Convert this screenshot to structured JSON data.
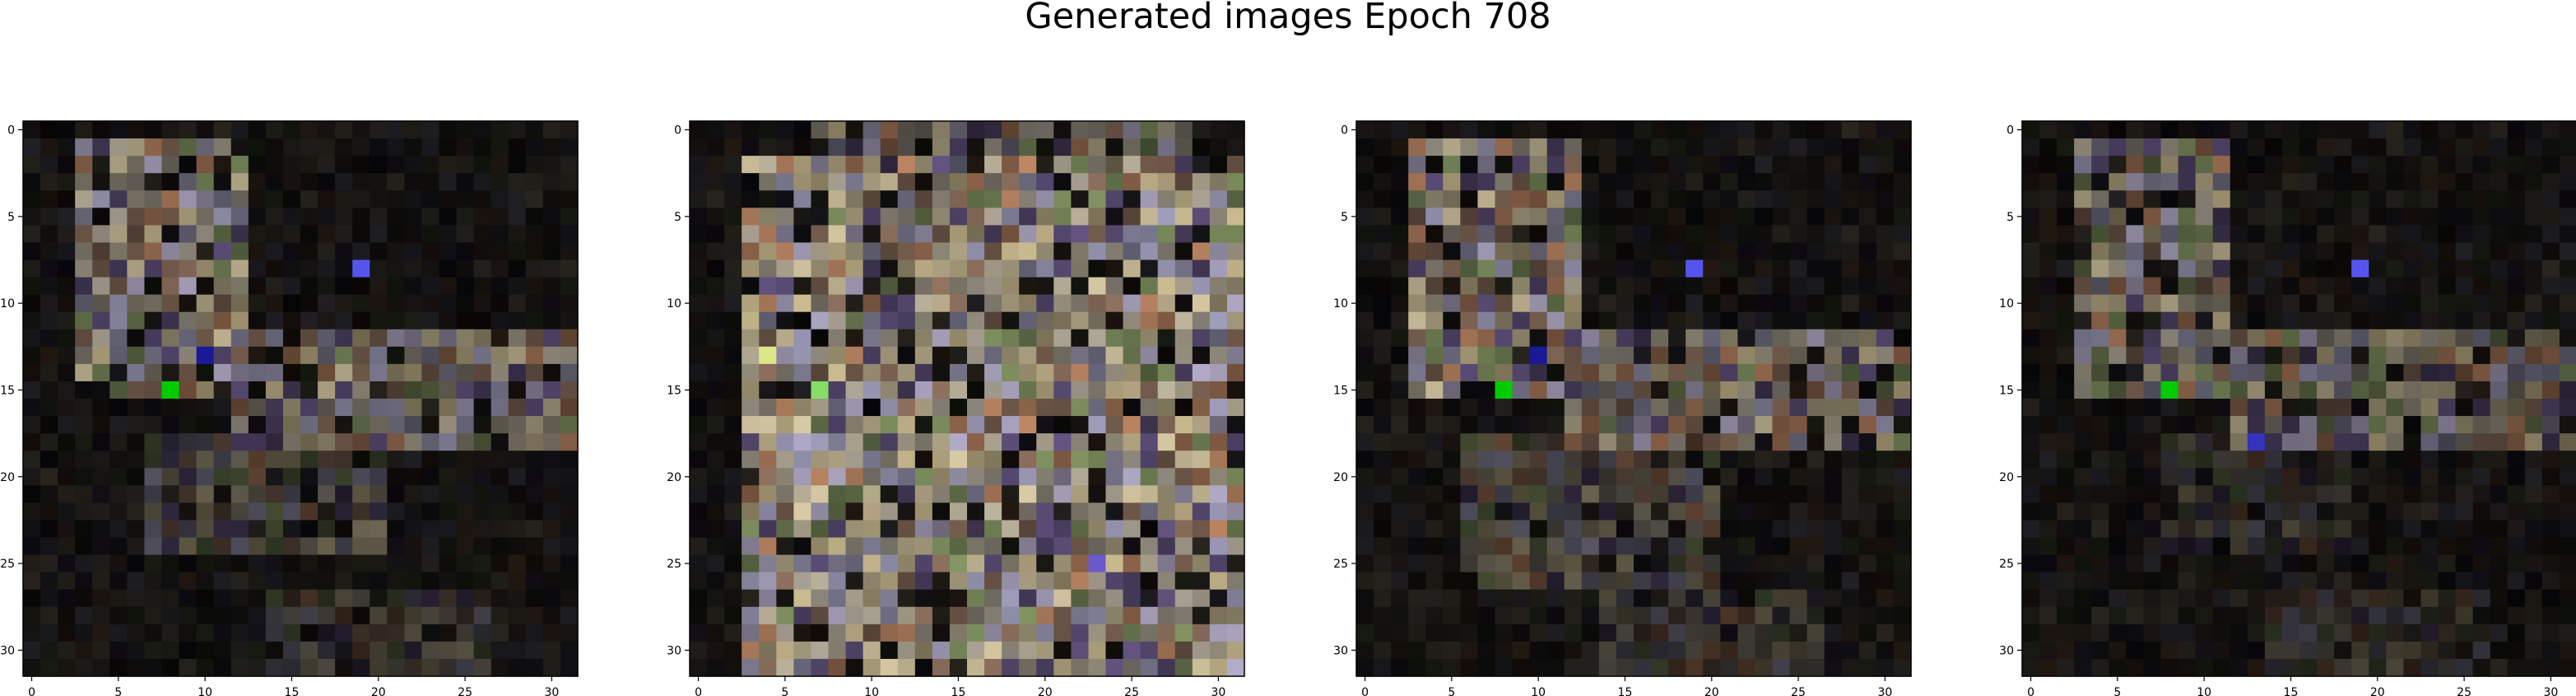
{
  "figure": {
    "title": "Generated images Epoch 708"
  },
  "chart_data": {
    "type": "heatmap",
    "title": "Generated images Epoch 708",
    "panels": [
      {
        "kind": "image-grid",
        "grid_size": [
          32,
          32
        ],
        "xticks": [
          0,
          5,
          10,
          15,
          20,
          25,
          30
        ],
        "yticks": [
          0,
          5,
          10,
          15,
          20,
          25,
          30
        ],
        "xlim": [
          -0.5,
          31.5
        ],
        "ylim": [
          31.5,
          -0.5
        ],
        "background": "#000000",
        "palette": [
          "#c9bfa7",
          "#e8d9b0",
          "#a9a7c6",
          "#c98f6a",
          "#8da06a",
          "#b9b0a0",
          "#d8c79a",
          "#6a5a8a",
          "#9a7a66",
          "#bfb8d6"
        ],
        "bright_regions": [
          {
            "x": [
              3,
              12
            ],
            "y": [
              1,
              15
            ],
            "brightness": 0.8
          },
          {
            "x": [
              12,
              31
            ],
            "y": [
              12,
              18
            ],
            "brightness": 0.7
          },
          {
            "x": [
              7,
              20
            ],
            "y": [
              18,
              24
            ],
            "brightness": 0.45
          },
          {
            "x": [
              14,
              26
            ],
            "y": [
              27,
              31
            ],
            "brightness": 0.35
          }
        ],
        "accents": [
          {
            "x": 8,
            "y": 15,
            "color": "#00cc00"
          },
          {
            "x": 10,
            "y": 13,
            "color": "#1a1a99"
          },
          {
            "x": 19,
            "y": 8,
            "color": "#5555ee"
          }
        ]
      },
      {
        "kind": "image-grid",
        "grid_size": [
          32,
          32
        ],
        "xticks": [
          0,
          5,
          10,
          15,
          20,
          25,
          30
        ],
        "yticks": [
          0,
          5,
          10,
          15,
          20,
          25,
          30
        ],
        "xlim": [
          -0.5,
          31.5
        ],
        "ylim": [
          31.5,
          -0.5
        ],
        "background": "#000000",
        "palette": [
          "#c9bfa7",
          "#e8d9b0",
          "#a9a7c6",
          "#c98f6a",
          "#8da06a",
          "#b9b0a0",
          "#d8c79a",
          "#6a5a8a",
          "#9a7a66",
          "#bfb8d6"
        ],
        "bright_regions": [
          {
            "x": [
              3,
              31
            ],
            "y": [
              2,
              31
            ],
            "brightness": 0.9
          },
          {
            "x": [
              7,
              28
            ],
            "y": [
              0,
              2
            ],
            "brightness": 0.6
          }
        ],
        "accents": [
          {
            "x": 7,
            "y": 15,
            "color": "#88dd66"
          },
          {
            "x": 4,
            "y": 13,
            "color": "#dde88a"
          },
          {
            "x": 23,
            "y": 25,
            "color": "#6a5acd"
          }
        ]
      },
      {
        "kind": "image-grid",
        "grid_size": [
          32,
          32
        ],
        "xticks": [
          0,
          5,
          10,
          15,
          20,
          25,
          30
        ],
        "yticks": [
          0,
          5,
          10,
          15,
          20,
          25,
          30
        ],
        "xlim": [
          -0.5,
          31.5
        ],
        "ylim": [
          31.5,
          -0.5
        ],
        "background": "#000000",
        "palette": [
          "#c9bfa7",
          "#e8d9b0",
          "#a9a7c6",
          "#c98f6a",
          "#8da06a",
          "#b9b0a0",
          "#d8c79a",
          "#6a5a8a",
          "#9a7a66",
          "#bfb8d6"
        ],
        "bright_regions": [
          {
            "x": [
              3,
              12
            ],
            "y": [
              1,
              15
            ],
            "brightness": 0.8
          },
          {
            "x": [
              12,
              31
            ],
            "y": [
              12,
              18
            ],
            "brightness": 0.7
          },
          {
            "x": [
              6,
              20
            ],
            "y": [
              18,
              26
            ],
            "brightness": 0.45
          },
          {
            "x": [
              14,
              26
            ],
            "y": [
              27,
              31
            ],
            "brightness": 0.35
          }
        ],
        "accents": [
          {
            "x": 8,
            "y": 15,
            "color": "#00cc00"
          },
          {
            "x": 10,
            "y": 13,
            "color": "#1a1a99"
          },
          {
            "x": 19,
            "y": 8,
            "color": "#5555ee"
          }
        ]
      },
      {
        "kind": "image-grid",
        "grid_size": [
          32,
          32
        ],
        "xticks": [
          0,
          5,
          10,
          15,
          20,
          25,
          30
        ],
        "yticks": [
          0,
          5,
          10,
          15,
          20,
          25,
          30
        ],
        "xlim": [
          -0.5,
          31.5
        ],
        "ylim": [
          31.5,
          -0.5
        ],
        "background": "#000000",
        "palette": [
          "#c9bfa7",
          "#e8d9b0",
          "#a9a7c6",
          "#c98f6a",
          "#8da06a",
          "#b9b0a0",
          "#d8c79a",
          "#6a5a8a",
          "#9a7a66",
          "#bfb8d6"
        ],
        "bright_regions": [
          {
            "x": [
              3,
              11
            ],
            "y": [
              1,
              15
            ],
            "brightness": 0.7
          },
          {
            "x": [
              12,
              31
            ],
            "y": [
              12,
              18
            ],
            "brightness": 0.6
          },
          {
            "x": [
              8,
              18
            ],
            "y": [
              18,
              24
            ],
            "brightness": 0.3
          },
          {
            "x": [
              14,
              26
            ],
            "y": [
              27,
              31
            ],
            "brightness": 0.3
          }
        ],
        "accents": [
          {
            "x": 8,
            "y": 15,
            "color": "#00cc00"
          },
          {
            "x": 13,
            "y": 18,
            "color": "#3333bb"
          },
          {
            "x": 19,
            "y": 8,
            "color": "#5555ee"
          }
        ]
      }
    ]
  }
}
